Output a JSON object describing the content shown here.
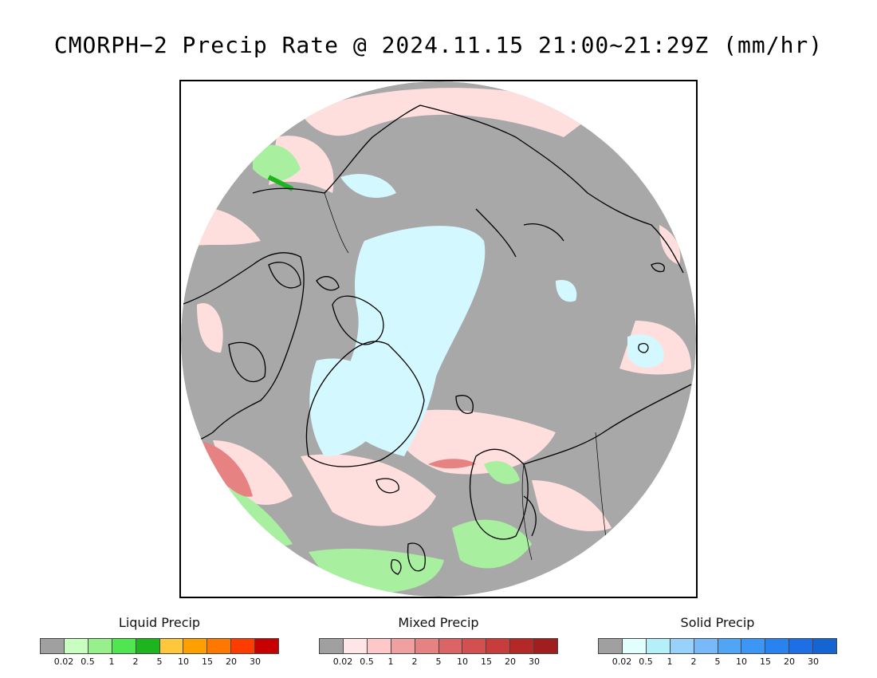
{
  "title": "CMORPH−2 Precip Rate @ 2024.11.15 21:00~21:29Z (mm/hr)",
  "colors": {
    "no_precip": "#a8a8a8",
    "mixed_light": "#ffdede",
    "liquid_light": "#a8f0a0",
    "solid_light": "#d4f8ff",
    "coast": "#000000"
  },
  "legends": [
    {
      "title": "Liquid Precip",
      "colors": [
        "#a0a0a0",
        "#c8ffc0",
        "#96f08c",
        "#50e650",
        "#1eb41e",
        "#ffc83c",
        "#ffa000",
        "#ff7800",
        "#ff3c00",
        "#c80000"
      ],
      "ticks": [
        "0.02",
        "0.5",
        "1",
        "2",
        "5",
        "10",
        "15",
        "20",
        "30"
      ]
    },
    {
      "title": "Mixed Precip",
      "colors": [
        "#a0a0a0",
        "#ffe6e6",
        "#ffc8c8",
        "#f0a0a0",
        "#e68282",
        "#dc6464",
        "#d25050",
        "#c83c3c",
        "#b42828",
        "#a01e1e"
      ],
      "ticks": [
        "0.02",
        "0.5",
        "1",
        "2",
        "5",
        "10",
        "15",
        "20",
        "30"
      ]
    },
    {
      "title": "Solid Precip",
      "colors": [
        "#a0a0a0",
        "#e1ffff",
        "#b4f0fa",
        "#96d2fa",
        "#78b9fa",
        "#50a5f5",
        "#3c96f5",
        "#2882f0",
        "#1e6ee6",
        "#1464d2"
      ],
      "ticks": [
        "0.02",
        "0.5",
        "1",
        "2",
        "5",
        "10",
        "15",
        "20",
        "30"
      ]
    }
  ]
}
